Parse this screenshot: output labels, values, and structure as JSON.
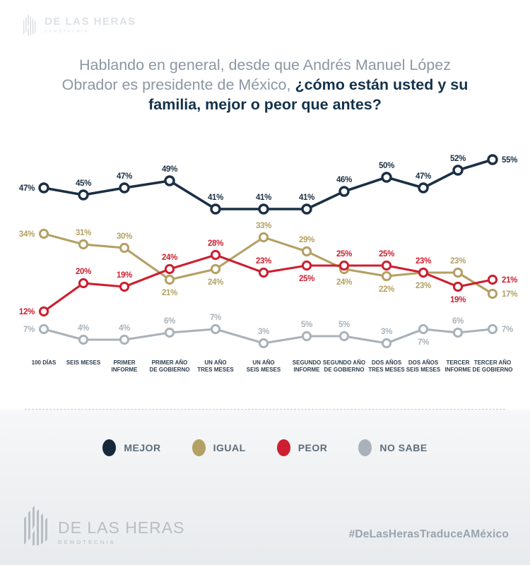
{
  "header": {
    "logo_text": "DE LAS HERAS",
    "logo_sub": "DEMOTECNIA"
  },
  "title": {
    "normal": "Hablando en general, desde que Andrés Manuel López Obrador es presidente de México, ",
    "bold": "¿cómo están usted y su familia, mejor o peor que antes?"
  },
  "chart_data": {
    "type": "line",
    "title": "Hablando en general, desde que Andrés Manuel López Obrador es presidente de México, ¿cómo están usted y su familia, mejor o peor que antes?",
    "xlabel": "",
    "ylabel": "",
    "ylim": [
      0,
      60
    ],
    "grid": false,
    "legend_position": "bottom",
    "value_suffix": "%",
    "categories": [
      [
        "100 DÍAS"
      ],
      [
        "SEIS MESES"
      ],
      [
        "PRIMER",
        "INFORME"
      ],
      [
        "PRIMER AÑO",
        "DE GOBIERNO"
      ],
      [
        "UN AÑO",
        "TRES MESES"
      ],
      [
        "UN AÑO",
        "SEIS MESES"
      ],
      [
        "SEGUNDO",
        "INFORME"
      ],
      [
        "SEGUNDO AÑO",
        "DE GOBIERNO"
      ],
      [
        "DOS AÑOS",
        "TRES MESES"
      ],
      [
        "DOS AÑOS",
        "SEIS MESES"
      ],
      [
        "TERCER",
        "INFORME"
      ],
      [
        "TERCER AÑO",
        "DE GOBIERNO"
      ]
    ],
    "series": [
      {
        "name": "MEJOR",
        "color": "#1b2f45",
        "values": [
          47,
          45,
          47,
          49,
          41,
          41,
          41,
          46,
          50,
          47,
          52,
          55
        ],
        "label_pos": [
          "left",
          "above",
          "above",
          "above",
          "above",
          "above",
          "above",
          "above",
          "above",
          "above",
          "above",
          "right"
        ]
      },
      {
        "name": "IGUAL",
        "color": "#b4a063",
        "values": [
          34,
          31,
          30,
          21,
          24,
          33,
          29,
          24,
          22,
          23,
          23,
          17
        ],
        "label_pos": [
          "left",
          "above",
          "above",
          "below",
          "below",
          "above",
          "above",
          "below",
          "below",
          "below",
          "above",
          "right"
        ]
      },
      {
        "name": "PEOR",
        "color": "#cd1f2f",
        "values": [
          12,
          20,
          19,
          24,
          28,
          23,
          25,
          25,
          25,
          23,
          19,
          21
        ],
        "label_pos": [
          "left",
          "above",
          "above",
          "above",
          "above",
          "above",
          "below",
          "above",
          "above",
          "above",
          "below",
          "right"
        ]
      },
      {
        "name": "NO SABE",
        "color": "#a9b2ba",
        "values": [
          7,
          4,
          4,
          6,
          7,
          3,
          5,
          5,
          3,
          7,
          6,
          7
        ],
        "label_pos": [
          "left",
          "above",
          "above",
          "above",
          "above",
          "above",
          "above",
          "above",
          "above",
          "below",
          "above",
          "right"
        ]
      }
    ]
  },
  "legend": {
    "items": [
      {
        "label": "MEJOR",
        "color": "#16283c"
      },
      {
        "label": "IGUAL",
        "color": "#b4a063"
      },
      {
        "label": "PEOR",
        "color": "#cd1f2f"
      },
      {
        "label": "NO SABE",
        "color": "#a9b2ba"
      }
    ]
  },
  "footer": {
    "logo_text": "DE LAS HERAS",
    "logo_sub": "DEMOTECNIA",
    "hashtag": "#DeLasHerasTraduceAMéxico"
  }
}
